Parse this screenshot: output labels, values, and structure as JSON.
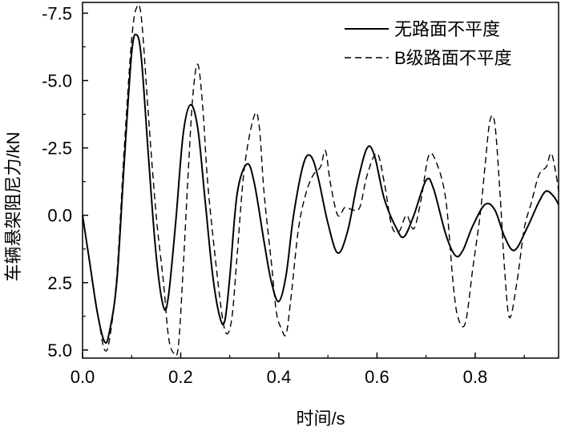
{
  "chart_data": {
    "type": "line",
    "xlabel": "时间/s",
    "ylabel": "车辆悬架阻尼力/kN",
    "xlim": [
      0.0,
      0.97
    ],
    "ylim": [
      5.3,
      -7.9
    ],
    "y_axis_inverted": true,
    "grid": false,
    "legend_position": "top-right",
    "x_ticks": [
      0.0,
      0.2,
      0.4,
      0.6,
      0.8
    ],
    "x_tick_labels": [
      "0.0",
      "0.2",
      "0.4",
      "0.6",
      "0.8"
    ],
    "y_ticks": [
      -7.5,
      -5.0,
      -2.5,
      0.0,
      2.5,
      5.0
    ],
    "y_tick_labels": [
      "-7.5",
      "-5.0",
      "-2.5",
      "0.0",
      "2.5",
      "5.0"
    ],
    "series": [
      {
        "name": "无路面不平度",
        "style": "solid",
        "color": "#000000",
        "points": [
          [
            0.0,
            0.0
          ],
          [
            0.015,
            1.8
          ],
          [
            0.03,
            3.6
          ],
          [
            0.045,
            4.7
          ],
          [
            0.055,
            4.3
          ],
          [
            0.07,
            2.4
          ],
          [
            0.085,
            -2.0
          ],
          [
            0.1,
            -6.0
          ],
          [
            0.11,
            -6.7
          ],
          [
            0.12,
            -5.8
          ],
          [
            0.135,
            -2.0
          ],
          [
            0.15,
            1.5
          ],
          [
            0.165,
            3.4
          ],
          [
            0.175,
            3.0
          ],
          [
            0.19,
            0.2
          ],
          [
            0.205,
            -3.0
          ],
          [
            0.22,
            -4.1
          ],
          [
            0.235,
            -3.2
          ],
          [
            0.25,
            -0.5
          ],
          [
            0.265,
            2.2
          ],
          [
            0.28,
            3.8
          ],
          [
            0.29,
            3.9
          ],
          [
            0.3,
            2.3
          ],
          [
            0.315,
            -0.8
          ],
          [
            0.335,
            -1.9
          ],
          [
            0.35,
            -1.2
          ],
          [
            0.37,
            1.0
          ],
          [
            0.385,
            2.5
          ],
          [
            0.4,
            3.2
          ],
          [
            0.415,
            2.2
          ],
          [
            0.43,
            0.0
          ],
          [
            0.45,
            -1.9
          ],
          [
            0.465,
            -2.2
          ],
          [
            0.48,
            -1.4
          ],
          [
            0.5,
            0.3
          ],
          [
            0.52,
            1.4
          ],
          [
            0.54,
            0.6
          ],
          [
            0.56,
            -1.2
          ],
          [
            0.58,
            -2.5
          ],
          [
            0.595,
            -2.2
          ],
          [
            0.615,
            -0.6
          ],
          [
            0.64,
            0.5
          ],
          [
            0.655,
            0.8
          ],
          [
            0.675,
            0.0
          ],
          [
            0.7,
            -1.3
          ],
          [
            0.715,
            -1.0
          ],
          [
            0.74,
            0.7
          ],
          [
            0.76,
            1.5
          ],
          [
            0.775,
            1.3
          ],
          [
            0.795,
            0.4
          ],
          [
            0.82,
            -0.4
          ],
          [
            0.84,
            -0.2
          ],
          [
            0.86,
            0.8
          ],
          [
            0.88,
            1.3
          ],
          [
            0.905,
            0.5
          ],
          [
            0.93,
            -0.5
          ],
          [
            0.945,
            -0.9
          ],
          [
            0.96,
            -0.7
          ],
          [
            0.97,
            -0.4
          ]
        ]
      },
      {
        "name": "B级路面不平度",
        "style": "dashed",
        "color": "#000000",
        "points": [
          [
            0.0,
            0.0
          ],
          [
            0.02,
            2.4
          ],
          [
            0.035,
            4.1
          ],
          [
            0.045,
            5.0
          ],
          [
            0.055,
            4.6
          ],
          [
            0.07,
            2.2
          ],
          [
            0.085,
            -2.5
          ],
          [
            0.1,
            -6.5
          ],
          [
            0.11,
            -7.7
          ],
          [
            0.12,
            -7.3
          ],
          [
            0.135,
            -3.5
          ],
          [
            0.15,
            0.0
          ],
          [
            0.165,
            2.5
          ],
          [
            0.175,
            4.5
          ],
          [
            0.185,
            5.1
          ],
          [
            0.195,
            4.9
          ],
          [
            0.205,
            2.0
          ],
          [
            0.215,
            -1.5
          ],
          [
            0.225,
            -4.5
          ],
          [
            0.235,
            -5.6
          ],
          [
            0.245,
            -4.0
          ],
          [
            0.255,
            -1.2
          ],
          [
            0.27,
            1.5
          ],
          [
            0.285,
            3.8
          ],
          [
            0.295,
            4.4
          ],
          [
            0.305,
            3.7
          ],
          [
            0.315,
            1.5
          ],
          [
            0.33,
            -1.8
          ],
          [
            0.35,
            -3.7
          ],
          [
            0.36,
            -3.3
          ],
          [
            0.37,
            -0.8
          ],
          [
            0.385,
            1.8
          ],
          [
            0.395,
            3.6
          ],
          [
            0.405,
            4.2
          ],
          [
            0.415,
            4.4
          ],
          [
            0.425,
            3.0
          ],
          [
            0.44,
            0.5
          ],
          [
            0.455,
            -0.8
          ],
          [
            0.47,
            -1.5
          ],
          [
            0.485,
            -1.8
          ],
          [
            0.495,
            -2.4
          ],
          [
            0.505,
            -1.2
          ],
          [
            0.52,
            0.0
          ],
          [
            0.535,
            -0.3
          ],
          [
            0.55,
            -0.2
          ],
          [
            0.565,
            -0.3
          ],
          [
            0.58,
            -1.5
          ],
          [
            0.6,
            -2.3
          ],
          [
            0.615,
            -1.2
          ],
          [
            0.63,
            0.4
          ],
          [
            0.645,
            0.6
          ],
          [
            0.66,
            0.0
          ],
          [
            0.675,
            0.5
          ],
          [
            0.69,
            -0.6
          ],
          [
            0.705,
            -2.2
          ],
          [
            0.72,
            -2.0
          ],
          [
            0.74,
            -0.6
          ],
          [
            0.755,
            2.5
          ],
          [
            0.765,
            3.8
          ],
          [
            0.78,
            4.0
          ],
          [
            0.795,
            2.0
          ],
          [
            0.81,
            0.0
          ],
          [
            0.82,
            -1.8
          ],
          [
            0.83,
            -3.5
          ],
          [
            0.84,
            -3.4
          ],
          [
            0.85,
            -1.0
          ],
          [
            0.86,
            2.0
          ],
          [
            0.87,
            3.8
          ],
          [
            0.885,
            2.5
          ],
          [
            0.9,
            0.5
          ],
          [
            0.915,
            -0.5
          ],
          [
            0.93,
            -1.5
          ],
          [
            0.945,
            -1.8
          ],
          [
            0.955,
            -2.3
          ],
          [
            0.965,
            -1.5
          ],
          [
            0.97,
            -0.9
          ]
        ]
      }
    ]
  }
}
